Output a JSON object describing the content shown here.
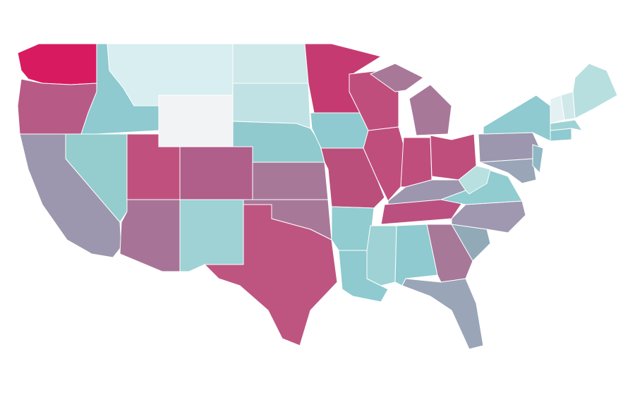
{
  "map": {
    "fills": [
      "#d81b60",
      "#b85a86",
      "#8ecad0",
      "#d8eef0",
      "#f2f3f4",
      "#cfe8ea",
      "#c0e2e4",
      "#90cace",
      "#b05e8a",
      "#c0517e",
      "#95cccd",
      "#9c97ae",
      "#a77497",
      "#9ed2d5",
      "#be5581",
      "#a87899",
      "#a87899",
      "#c63a72",
      "#8ecad0",
      "#bb4f7c",
      "#90ccd0",
      "#8ecad0",
      "#c04e7d",
      "#c04e7d",
      "#a87899",
      "#a87899",
      "#c04e7d",
      "#c04e7d",
      "#9c97ae",
      "#bb5080",
      "#9ed2d5",
      "#8ecad0",
      "#a87899",
      "#9aa5b8",
      "#92aab8",
      "#a097b0",
      "#90ccd0",
      "#b8e0e0",
      "#9c97ae",
      "#8ecad0",
      "#9aa5b8",
      "#90b8c4",
      "#8ecad0",
      "#9ed2d5",
      "#e3f1f2",
      "#d0e8ea",
      "#b8dfe0"
    ]
  }
}
